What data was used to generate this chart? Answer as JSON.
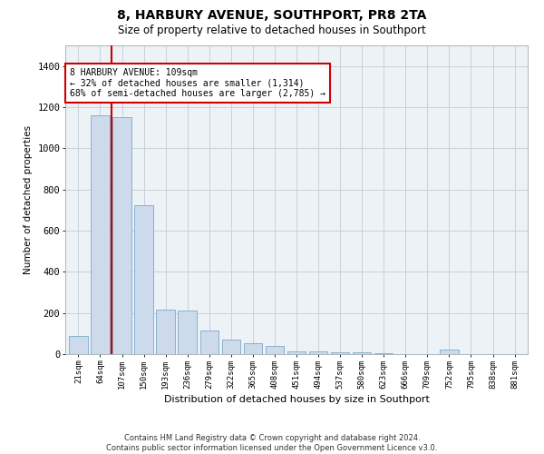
{
  "title": "8, HARBURY AVENUE, SOUTHPORT, PR8 2TA",
  "subtitle": "Size of property relative to detached houses in Southport",
  "xlabel": "Distribution of detached houses by size in Southport",
  "ylabel": "Number of detached properties",
  "footer_line1": "Contains HM Land Registry data © Crown copyright and database right 2024.",
  "footer_line2": "Contains public sector information licensed under the Open Government Licence v3.0.",
  "bar_color": "#ccdaeb",
  "bar_edge_color": "#7aaac8",
  "grid_color": "#c8d0dc",
  "annotation_box_color": "#cc0000",
  "vertical_line_color": "#cc0000",
  "annotation_text_line1": "8 HARBURY AVENUE: 109sqm",
  "annotation_text_line2": "← 32% of detached houses are smaller (1,314)",
  "annotation_text_line3": "68% of semi-detached houses are larger (2,785) →",
  "categories": [
    "21sqm",
    "64sqm",
    "107sqm",
    "150sqm",
    "193sqm",
    "236sqm",
    "279sqm",
    "322sqm",
    "365sqm",
    "408sqm",
    "451sqm",
    "494sqm",
    "537sqm",
    "580sqm",
    "623sqm",
    "666sqm",
    "709sqm",
    "752sqm",
    "795sqm",
    "838sqm",
    "881sqm"
  ],
  "values": [
    90,
    1160,
    1150,
    725,
    215,
    210,
    115,
    70,
    55,
    40,
    15,
    15,
    8,
    8,
    5,
    2,
    2,
    20,
    2,
    0,
    0
  ],
  "ylim": [
    0,
    1500
  ],
  "yticks": [
    0,
    200,
    400,
    600,
    800,
    1000,
    1200,
    1400
  ],
  "background_color": "#ffffff",
  "plot_bg_color": "#edf2f7"
}
